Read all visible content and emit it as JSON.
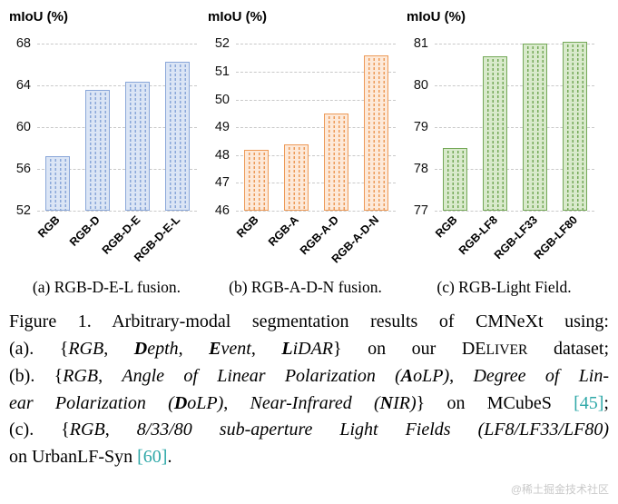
{
  "chart_data": [
    {
      "type": "bar",
      "title": "mIoU (%)",
      "categories": [
        "RGB",
        "RGB-D",
        "RGB-D-E",
        "RGB-D-E-L"
      ],
      "values": [
        57.2,
        63.6,
        64.4,
        66.3
      ],
      "ylim": [
        52,
        68
      ],
      "yticks": [
        52,
        56,
        60,
        64,
        68
      ],
      "grid": "horizontal-dashed",
      "legend": "none",
      "bar_style": {
        "fill": "#dbe5f5",
        "stripe": "#8aa7d9",
        "border": "#8aa7d9"
      },
      "subcaption": "(a) RGB-D-E-L fusion."
    },
    {
      "type": "bar",
      "title": "mIoU (%)",
      "categories": [
        "RGB",
        "RGB-A",
        "RGB-A-D",
        "RGB-A-D-N"
      ],
      "values": [
        48.2,
        48.4,
        49.5,
        51.6
      ],
      "ylim": [
        46,
        52
      ],
      "yticks": [
        46,
        47,
        48,
        49,
        50,
        51,
        52
      ],
      "grid": "horizontal-dashed",
      "legend": "none",
      "bar_style": {
        "fill": "#fde9d9",
        "stripe": "#ed9a57",
        "border": "#ed9a57"
      },
      "subcaption": "(b) RGB-A-D-N fusion."
    },
    {
      "type": "bar",
      "title": "mIoU (%)",
      "categories": [
        "RGB",
        "RGB-LF8",
        "RGB-LF33",
        "RGB-LF80"
      ],
      "values": [
        78.5,
        80.7,
        81.0,
        81.05
      ],
      "ylim": [
        77,
        81
      ],
      "yticks": [
        77,
        78,
        79,
        80,
        81
      ],
      "grid": "horizontal-dashed",
      "legend": "none",
      "bar_style": {
        "fill": "#d9eacc",
        "stripe": "#74a857",
        "border": "#74a857"
      },
      "subcaption": "(c) RGB-Light Field."
    }
  ],
  "caption": {
    "lines": [
      {
        "justify": true,
        "segments": [
          {
            "t": "Figure 1. Arbitrary-modal segmentation results of CMNeXt using:",
            "s": "p"
          }
        ]
      },
      {
        "justify": true,
        "segments": [
          {
            "t": "(a). {",
            "s": "p"
          },
          {
            "t": "RGB",
            "s": "i"
          },
          {
            "t": ", ",
            "s": "p"
          },
          {
            "t": "D",
            "s": "bi"
          },
          {
            "t": "epth",
            "s": "i"
          },
          {
            "t": ", ",
            "s": "p"
          },
          {
            "t": "E",
            "s": "bi"
          },
          {
            "t": "vent",
            "s": "i"
          },
          {
            "t": ", ",
            "s": "p"
          },
          {
            "t": "L",
            "s": "bi"
          },
          {
            "t": "iDAR",
            "s": "i"
          },
          {
            "t": "} on our ",
            "s": "p"
          },
          {
            "t": "DE",
            "s": "p"
          },
          {
            "t": "LIVER",
            "s": "sc"
          },
          {
            "t": " dataset;",
            "s": "p"
          }
        ]
      },
      {
        "justify": true,
        "segments": [
          {
            "t": "(b). {",
            "s": "p"
          },
          {
            "t": "RGB",
            "s": "i"
          },
          {
            "t": ", ",
            "s": "p"
          },
          {
            "t": "Angle of Linear Polarization (",
            "s": "i"
          },
          {
            "t": "A",
            "s": "bi"
          },
          {
            "t": "oLP)",
            "s": "i"
          },
          {
            "t": ", ",
            "s": "p"
          },
          {
            "t": "Degree of Lin-",
            "s": "i"
          }
        ]
      },
      {
        "justify": true,
        "segments": [
          {
            "t": "ear Polarization (",
            "s": "i"
          },
          {
            "t": "D",
            "s": "bi"
          },
          {
            "t": "oLP)",
            "s": "i"
          },
          {
            "t": ", ",
            "s": "p"
          },
          {
            "t": "Near-Infrared (",
            "s": "i"
          },
          {
            "t": "N",
            "s": "bi"
          },
          {
            "t": "IR)",
            "s": "i"
          },
          {
            "t": "} on MCubeS ",
            "s": "p"
          },
          {
            "t": "[45]",
            "s": "cite"
          },
          {
            "t": ";",
            "s": "p"
          }
        ]
      },
      {
        "justify": true,
        "segments": [
          {
            "t": "(c). {",
            "s": "p"
          },
          {
            "t": "RGB",
            "s": "i"
          },
          {
            "t": ", ",
            "s": "p"
          },
          {
            "t": "8/33/80 sub-aperture Light Fields (LF8/LF33/LF80)",
            "s": "i"
          }
        ]
      },
      {
        "justify": false,
        "segments": [
          {
            "t": "on UrbanLF-Syn ",
            "s": "p"
          },
          {
            "t": "[60]",
            "s": "cite"
          },
          {
            "t": ".",
            "s": "p"
          }
        ]
      }
    ]
  },
  "colors": {
    "citation": "#2fa8a8",
    "gridline": "#c9c9c9",
    "watermark": "#c9c9c9"
  },
  "watermark": "@稀土掘金技术社区"
}
